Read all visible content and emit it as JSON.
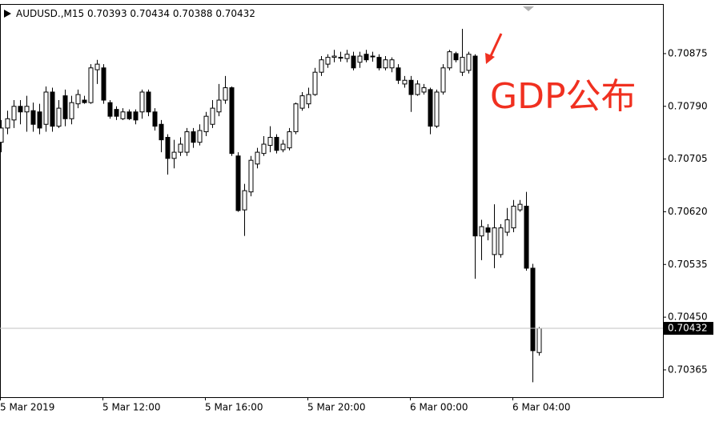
{
  "chart_data": {
    "type": "candlestick",
    "title": "AUDUSD.,M15",
    "annotation": "GDP公布",
    "categories": [
      "5 Mar 2019",
      null,
      null,
      null,
      null,
      null,
      null,
      null,
      null,
      null,
      null,
      null,
      null,
      null,
      null,
      null,
      "5 Mar 12:00",
      null,
      null,
      null,
      null,
      null,
      null,
      null,
      null,
      null,
      null,
      null,
      null,
      null,
      null,
      null,
      "5 Mar 16:00",
      null,
      null,
      null,
      null,
      null,
      null,
      null,
      null,
      null,
      null,
      null,
      null,
      null,
      null,
      null,
      "5 Mar 20:00",
      null,
      null,
      null,
      null,
      null,
      null,
      null,
      null,
      null,
      null,
      null,
      null,
      null,
      null,
      null,
      "6 Mar 00:00",
      null,
      null,
      null,
      null,
      null,
      null,
      null,
      null,
      null,
      null,
      null,
      null,
      null,
      null,
      null,
      "6 Mar 04:00",
      null,
      null,
      null,
      null
    ],
    "open": [
      0.70732,
      0.70755,
      0.70768,
      0.7079,
      0.70781,
      0.70783,
      0.70781,
      0.70761,
      0.70813,
      0.70758,
      0.70807,
      0.7077,
      0.70794,
      0.708,
      0.70796,
      0.70849,
      0.70852,
      0.70796,
      0.70785,
      0.7077,
      0.70781,
      0.70781,
      0.70781,
      0.70813,
      0.70781,
      0.70761,
      0.7074,
      0.70706,
      0.70716,
      0.70716,
      0.70749,
      0.70732,
      0.70749,
      0.70761,
      0.70781,
      0.708,
      0.7082,
      0.7071,
      0.70623,
      0.70652,
      0.70697,
      0.70714,
      0.70727,
      0.7074,
      0.7072,
      0.70723,
      0.70749,
      0.70787,
      0.70794,
      0.70809,
      0.70845,
      0.70858,
      0.70869,
      0.70869,
      0.70867,
      0.70871,
      0.70861,
      0.70874,
      0.70871,
      0.70869,
      0.70852,
      0.70852,
      0.70852,
      0.70826,
      0.70832,
      0.70809,
      0.70813,
      0.70817,
      0.70758,
      0.70813,
      0.70852,
      0.70875,
      0.70845,
      0.70848,
      0.70871,
      0.70581,
      0.70594,
      0.70551,
      0.70551,
      0.70587,
      0.70594,
      0.70623,
      0.70629,
      0.70529,
      0.70393
    ],
    "high": [
      0.70768,
      0.70783,
      0.708,
      0.708,
      0.70807,
      0.70796,
      0.70794,
      0.70822,
      0.7082,
      0.708,
      0.70817,
      0.70807,
      0.70817,
      0.70807,
      0.70858,
      0.70865,
      0.70858,
      0.708,
      0.7079,
      0.70787,
      0.70785,
      0.70785,
      0.70817,
      0.70817,
      0.70787,
      0.70768,
      0.70745,
      0.70736,
      0.7074,
      0.70755,
      0.70755,
      0.70761,
      0.70781,
      0.708,
      0.70826,
      0.70839,
      0.70822,
      0.70716,
      0.70665,
      0.7071,
      0.70723,
      0.70742,
      0.70758,
      0.70745,
      0.70736,
      0.70755,
      0.70796,
      0.70813,
      0.7082,
      0.70852,
      0.70871,
      0.70874,
      0.70881,
      0.70878,
      0.70881,
      0.70878,
      0.70878,
      0.70881,
      0.70878,
      0.70874,
      0.70871,
      0.70869,
      0.70858,
      0.70839,
      0.70839,
      0.70832,
      0.70826,
      0.7082,
      0.70817,
      0.70858,
      0.70881,
      0.70878,
      0.70915,
      0.70878,
      0.70874,
      0.70607,
      0.706,
      0.70632,
      0.706,
      0.70626,
      0.70639,
      0.70639,
      0.70652,
      0.70536,
      0.70434
    ],
    "low": [
      0.70716,
      0.70745,
      0.70755,
      0.70761,
      0.70749,
      0.70749,
      0.70745,
      0.70749,
      0.70749,
      0.70755,
      0.70758,
      0.70761,
      0.70787,
      0.70794,
      0.70794,
      0.70826,
      0.70794,
      0.7077,
      0.70768,
      0.70768,
      0.70768,
      0.70761,
      0.7077,
      0.70774,
      0.70751,
      0.70716,
      0.7068,
      0.7069,
      0.7071,
      0.7071,
      0.70723,
      0.70727,
      0.70742,
      0.70755,
      0.70774,
      0.70794,
      0.7071,
      0.7062,
      0.70581,
      0.70645,
      0.7069,
      0.7071,
      0.70716,
      0.70714,
      0.70716,
      0.70719,
      0.70745,
      0.70783,
      0.70787,
      0.70807,
      0.70839,
      0.70852,
      0.70861,
      0.70862,
      0.70861,
      0.70848,
      0.70852,
      0.70861,
      0.70862,
      0.70848,
      0.70848,
      0.70845,
      0.70826,
      0.7082,
      0.70781,
      0.70807,
      0.70809,
      0.70745,
      0.70755,
      0.70809,
      0.70848,
      0.70861,
      0.70839,
      0.70843,
      0.70512,
      0.70542,
      0.70574,
      0.70529,
      0.70546,
      0.70581,
      0.70587,
      0.7062,
      0.70525,
      0.70345,
      0.70388
    ],
    "close": [
      0.70755,
      0.7077,
      0.7079,
      0.70781,
      0.7079,
      0.70761,
      0.70755,
      0.70813,
      0.70758,
      0.70787,
      0.7077,
      0.70796,
      0.70809,
      0.70796,
      0.70852,
      0.70858,
      0.708,
      0.70774,
      0.70774,
      0.70781,
      0.7077,
      0.70768,
      0.70813,
      0.70781,
      0.70758,
      0.70736,
      0.70706,
      0.70716,
      0.70729,
      0.70749,
      0.70732,
      0.70751,
      0.70774,
      0.70787,
      0.708,
      0.7082,
      0.70714,
      0.70622,
      0.70654,
      0.70703,
      0.70716,
      0.70729,
      0.7074,
      0.70719,
      0.70729,
      0.70749,
      0.70794,
      0.70807,
      0.70809,
      0.70845,
      0.70865,
      0.70869,
      0.70871,
      0.70868,
      0.70874,
      0.70852,
      0.70871,
      0.70865,
      0.7087,
      0.70852,
      0.70865,
      0.70865,
      0.70832,
      0.70832,
      0.70809,
      0.70826,
      0.7082,
      0.70758,
      0.70813,
      0.70852,
      0.70878,
      0.70865,
      0.70869,
      0.70874,
      0.70581,
      0.70596,
      0.70587,
      0.70594,
      0.70594,
      0.70607,
      0.70629,
      0.70632,
      0.70529,
      0.70396,
      0.70432
    ],
    "up_color": "#ffffff",
    "down_color": "#000000",
    "line_color": "#000000",
    "ylim": [
      0.70321,
      0.70955
    ],
    "yticks": [
      0.70875,
      {
        "value": 0.7079,
        "label": "0.70790"
      },
      0.70705,
      {
        "value": 0.7062,
        "label": "0.70620"
      },
      0.70535,
      {
        "value": 0.7045,
        "label": "0.70450"
      },
      0.70365
    ]
  }
}
